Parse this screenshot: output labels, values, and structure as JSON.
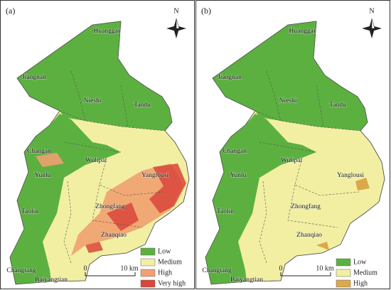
{
  "panels": [
    {
      "label": "(a)",
      "north": "N",
      "places": [
        "Huanggai",
        "Jiangnan",
        "Nieshi",
        "Tandu",
        "Changan",
        "Wulipai",
        "Yunlu",
        "Yanglousi",
        "Taolin",
        "Zhongfang",
        "Zhanqiao",
        "Changtang",
        "Baiyangtian"
      ],
      "legend": [
        {
          "label": "Low",
          "color": "#5cb040"
        },
        {
          "label": "Medium",
          "color": "#f2efa3"
        },
        {
          "label": "High",
          "color": "#f0a070"
        },
        {
          "label": "Very high",
          "color": "#d9473a"
        }
      ],
      "scale": {
        "start": "0",
        "end": "10 km"
      }
    },
    {
      "label": "(b)",
      "north": "N",
      "places": [
        "Huanggai",
        "Jiangnan",
        "Nieshi",
        "Tandu",
        "Changan",
        "Wulipai",
        "Yunlu",
        "Yanglousi",
        "Taolin",
        "Zhongfang",
        "Zhanqiao",
        "Changtang",
        "Baiyangtian"
      ],
      "legend": [
        {
          "label": "Low",
          "color": "#5cb040"
        },
        {
          "label": "Medium",
          "color": "#f2efa3"
        },
        {
          "label": "High",
          "color": "#dba84a"
        }
      ],
      "scale": {
        "start": "0",
        "end": "10 km"
      }
    }
  ]
}
